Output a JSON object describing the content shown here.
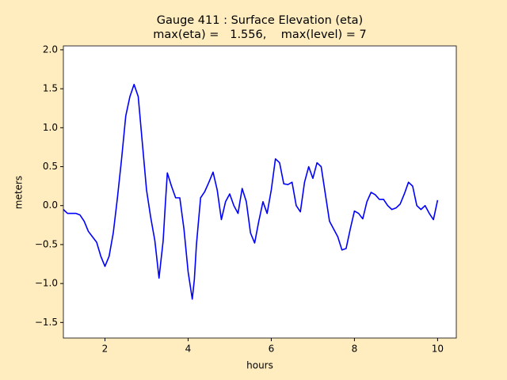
{
  "chart_data": {
    "type": "line",
    "title": "Gauge 411 : Surface Elevation (eta)",
    "subtitle": "max(eta) =   1.556,    max(level) = 7",
    "x_label": "hours",
    "y_label": "meters",
    "xlim": [
      1,
      10.45
    ],
    "ylim": [
      -1.7,
      2.05
    ],
    "xticks": [
      2,
      4,
      6,
      8,
      10
    ],
    "yticks": [
      {
        "value": -1.5,
        "label": "−1.5"
      },
      {
        "value": -1.0,
        "label": "−1.0"
      },
      {
        "value": -0.5,
        "label": "−0.5"
      },
      {
        "value": 0,
        "label": "0.0"
      },
      {
        "value": 0.5,
        "label": "0.5"
      },
      {
        "value": 1.0,
        "label": "1.0"
      },
      {
        "value": 1.5,
        "label": "1.5"
      },
      {
        "value": 2.0,
        "label": "2.0"
      }
    ],
    "grid": false,
    "x": [
      1.0,
      1.1,
      1.2,
      1.3,
      1.4,
      1.5,
      1.6,
      1.7,
      1.8,
      1.9,
      2.0,
      2.1,
      2.2,
      2.3,
      2.4,
      2.5,
      2.6,
      2.7,
      2.8,
      2.9,
      3.0,
      3.1,
      3.2,
      3.3,
      3.4,
      3.45,
      3.5,
      3.6,
      3.7,
      3.8,
      3.9,
      4.0,
      4.1,
      4.15,
      4.2,
      4.3,
      4.4,
      4.5,
      4.6,
      4.7,
      4.8,
      4.9,
      5.0,
      5.1,
      5.2,
      5.3,
      5.4,
      5.5,
      5.6,
      5.7,
      5.8,
      5.9,
      6.0,
      6.1,
      6.2,
      6.3,
      6.4,
      6.5,
      6.6,
      6.7,
      6.8,
      6.9,
      7.0,
      7.1,
      7.2,
      7.3,
      7.4,
      7.5,
      7.6,
      7.7,
      7.8,
      7.9,
      8.0,
      8.1,
      8.2,
      8.3,
      8.4,
      8.5,
      8.6,
      8.7,
      8.8,
      8.9,
      9.0,
      9.1,
      9.2,
      9.3,
      9.4,
      9.5,
      9.6,
      9.7,
      9.8,
      9.9,
      10.0
    ],
    "series": [
      {
        "name": "eta",
        "color": "#0000ff",
        "values": [
          -0.05,
          -0.1,
          -0.1,
          -0.1,
          -0.12,
          -0.2,
          -0.33,
          -0.4,
          -0.47,
          -0.65,
          -0.78,
          -0.65,
          -0.35,
          0.1,
          0.6,
          1.15,
          1.4,
          1.556,
          1.4,
          0.8,
          0.2,
          -0.15,
          -0.45,
          -0.93,
          -0.45,
          0.0,
          0.42,
          0.25,
          0.1,
          0.1,
          -0.3,
          -0.85,
          -1.2,
          -0.95,
          -0.5,
          0.1,
          0.18,
          0.3,
          0.43,
          0.2,
          -0.18,
          0.05,
          0.15,
          0.0,
          -0.1,
          0.22,
          0.05,
          -0.35,
          -0.48,
          -0.2,
          0.05,
          -0.1,
          0.2,
          0.6,
          0.55,
          0.28,
          0.27,
          0.3,
          0.0,
          -0.08,
          0.3,
          0.5,
          0.35,
          0.55,
          0.5,
          0.15,
          -0.2,
          -0.3,
          -0.4,
          -0.57,
          -0.55,
          -0.3,
          -0.07,
          -0.1,
          -0.17,
          0.05,
          0.17,
          0.14,
          0.08,
          0.08,
          0.0,
          -0.05,
          -0.03,
          0.02,
          0.15,
          0.3,
          0.25,
          0.0,
          -0.05,
          0.0,
          -0.1,
          -0.18,
          0.07
        ]
      }
    ]
  }
}
